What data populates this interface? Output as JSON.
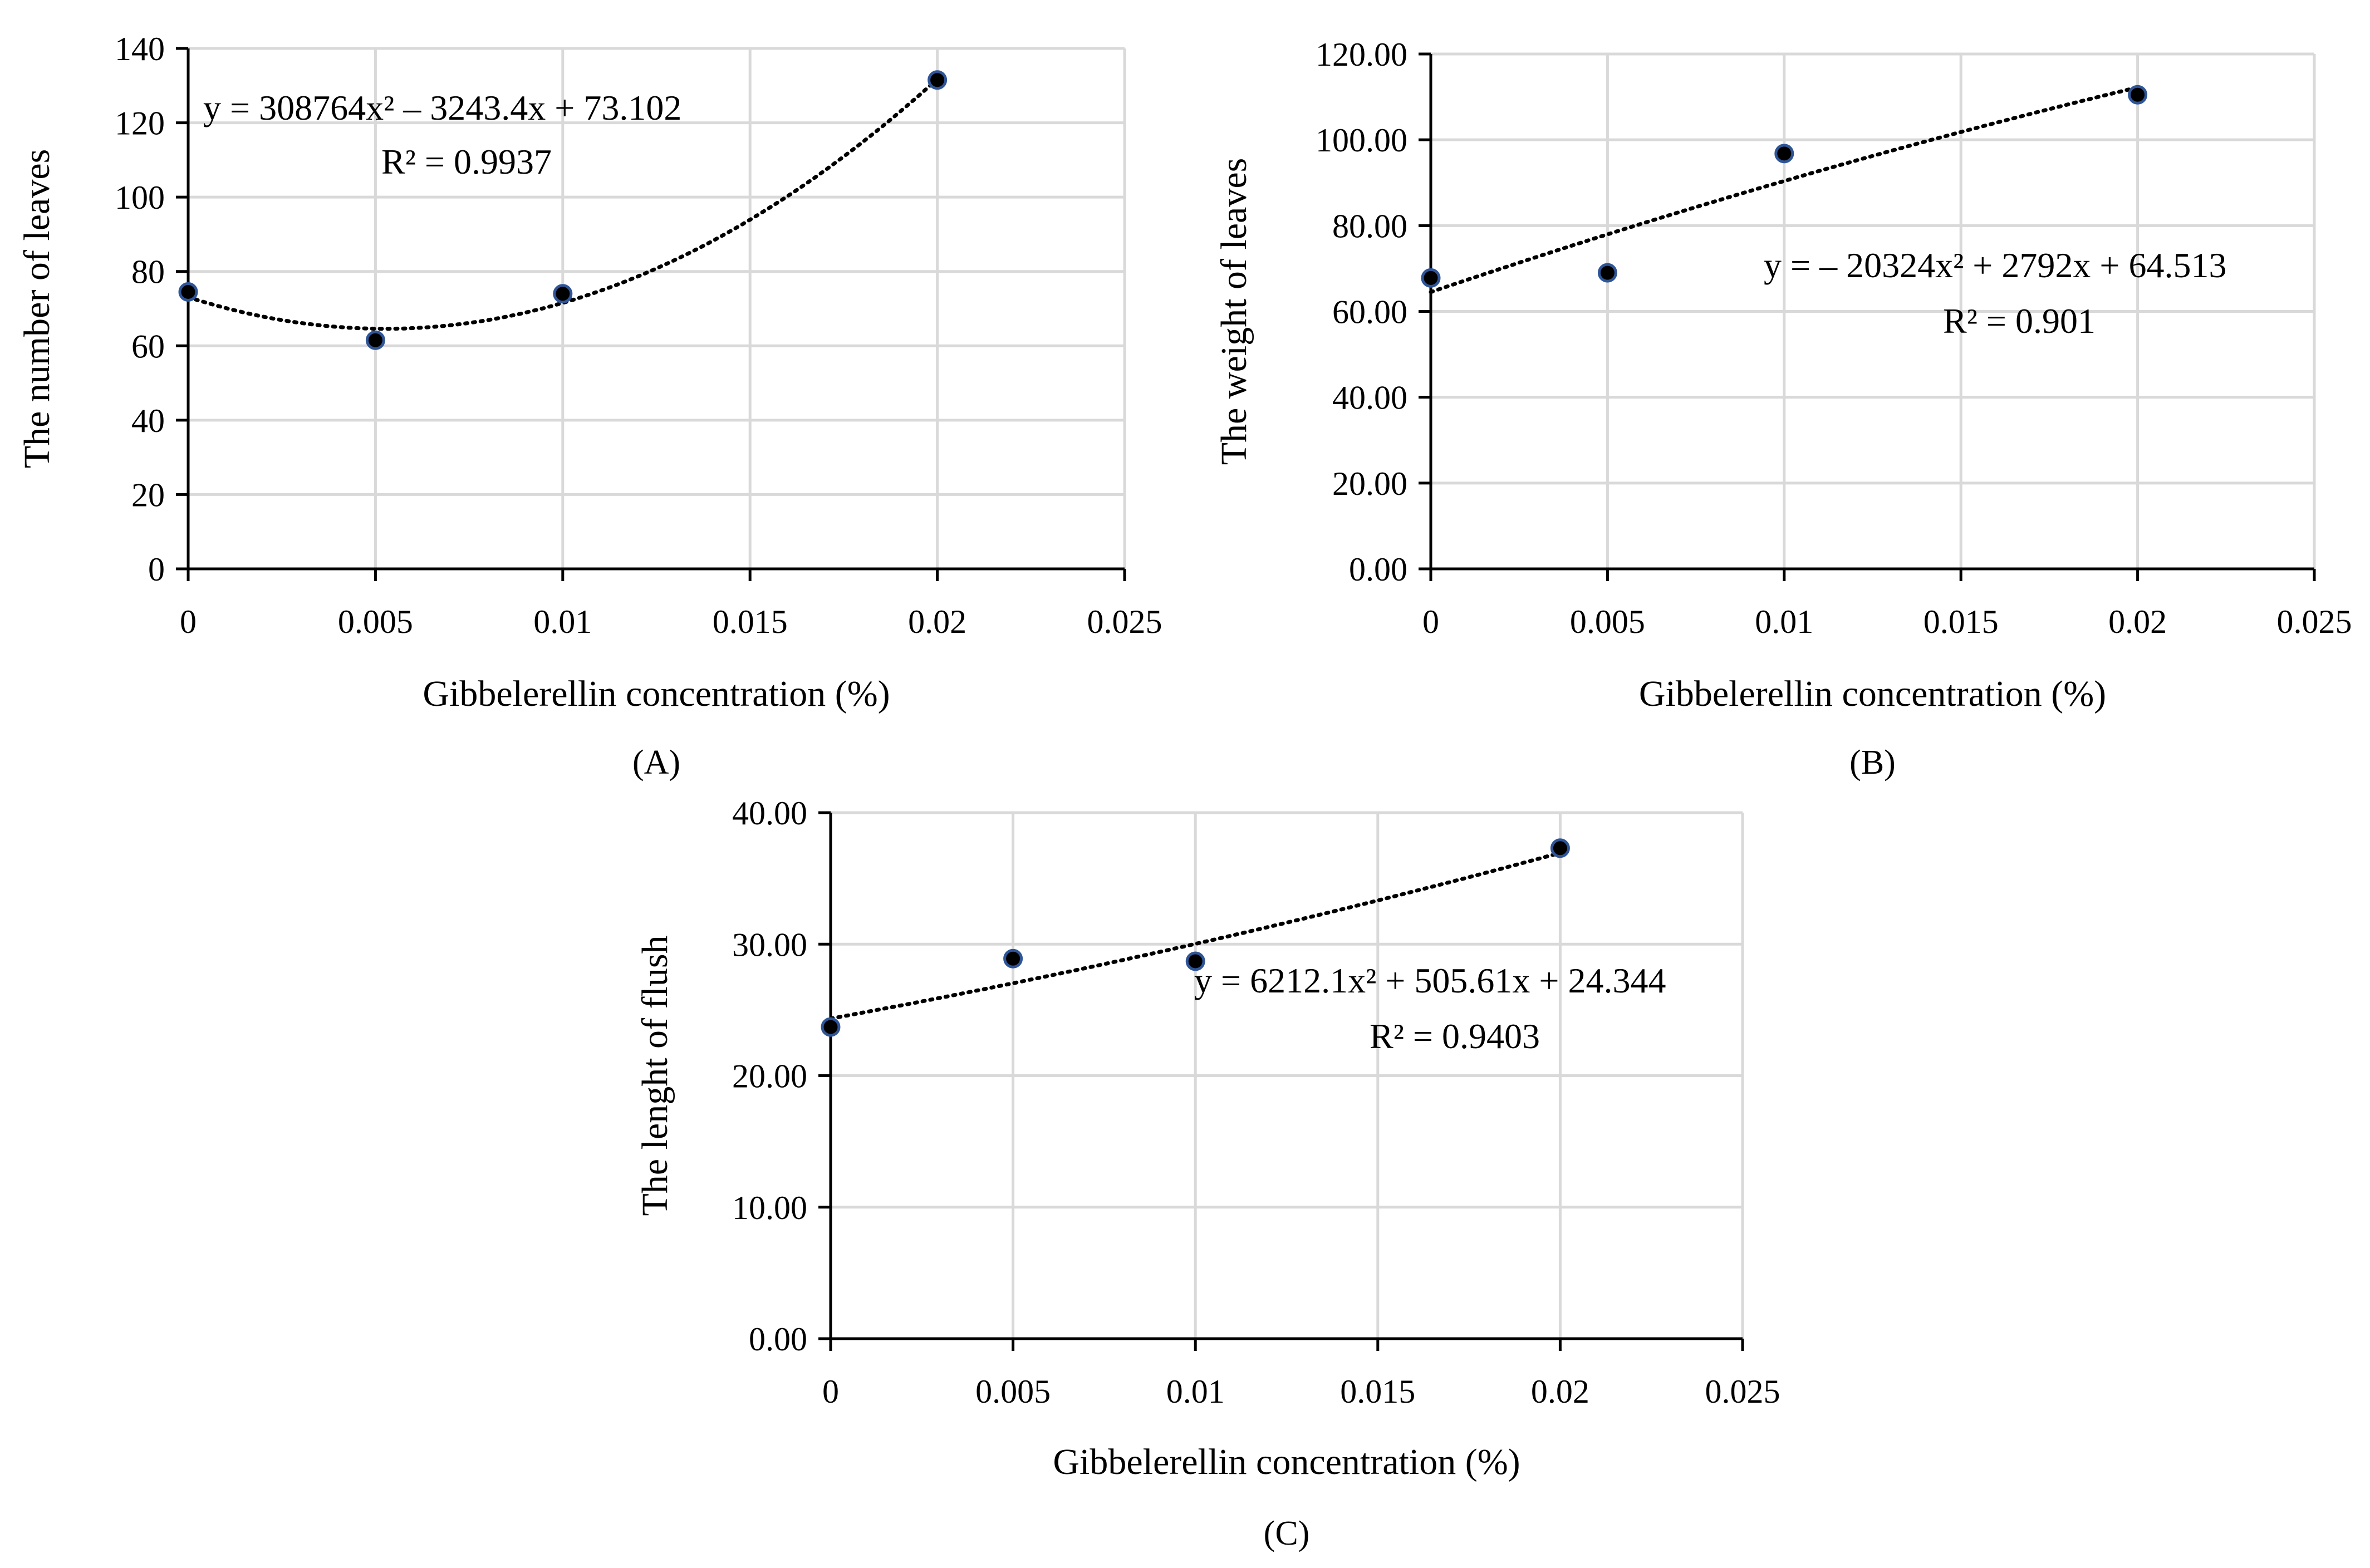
{
  "chart_data": [
    {
      "id": "A",
      "type": "scatter",
      "panel_label": "(A)",
      "xlabel": "Gibbelerellin concentration (%)",
      "ylabel": "The number of leaves",
      "xlim": [
        0,
        0.025
      ],
      "ylim": [
        0,
        140
      ],
      "xticks": [
        "0",
        "0.005",
        "0.01",
        "0.015",
        "0.02",
        "0.025"
      ],
      "xtick_values": [
        0,
        0.005,
        0.01,
        0.015,
        0.02,
        0.025
      ],
      "yticks": [
        "0",
        "20",
        "40",
        "60",
        "80",
        "100",
        "120",
        "140"
      ],
      "ytick_values": [
        0,
        20,
        40,
        60,
        80,
        100,
        120,
        140
      ],
      "x": [
        0,
        0.005,
        0.01,
        0.02
      ],
      "y": [
        74.5,
        61.5,
        74,
        131.5
      ],
      "trendline": {
        "type": "poly2",
        "a": 308764,
        "b": -3243.4,
        "c": 73.102
      },
      "equation": "y = 308764x² – 3243.4x + 73.102",
      "r2": "R² = 0.9937"
    },
    {
      "id": "B",
      "type": "scatter",
      "panel_label": "(B)",
      "xlabel": "Gibbelerellin concentration (%)",
      "ylabel": "The weight of leaves",
      "xlim": [
        0,
        0.025
      ],
      "ylim": [
        0,
        120
      ],
      "xticks": [
        "0",
        "0.005",
        "0.01",
        "0.015",
        "0.02",
        "0.025"
      ],
      "xtick_values": [
        0,
        0.005,
        0.01,
        0.015,
        0.02,
        0.025
      ],
      "yticks": [
        "0.00",
        "20.00",
        "40.00",
        "60.00",
        "80.00",
        "100.00",
        "120.00"
      ],
      "ytick_values": [
        0,
        20,
        40,
        60,
        80,
        100,
        120
      ],
      "x": [
        0,
        0.005,
        0.01,
        0.02
      ],
      "y": [
        67.8,
        69,
        96.8,
        110.5
      ],
      "trendline": {
        "type": "poly2",
        "a": -20324,
        "b": 2792,
        "c": 64.513
      },
      "equation": "y = – 20324x² + 2792x + 64.513",
      "r2": "R² = 0.901"
    },
    {
      "id": "C",
      "type": "scatter",
      "panel_label": "(C)",
      "xlabel": "Gibbelerellin concentration (%)",
      "ylabel": "The lenght of flush",
      "xlim": [
        0,
        0.025
      ],
      "ylim": [
        0,
        40
      ],
      "xticks": [
        "0",
        "0.005",
        "0.01",
        "0.015",
        "0.02",
        "0.025"
      ],
      "xtick_values": [
        0,
        0.005,
        0.01,
        0.015,
        0.02,
        0.025
      ],
      "yticks": [
        "0.00",
        "10.00",
        "20.00",
        "30.00",
        "40.00"
      ],
      "ytick_values": [
        0,
        10,
        20,
        30,
        40
      ],
      "x": [
        0,
        0.005,
        0.01,
        0.02
      ],
      "y": [
        23.7,
        28.9,
        28.7,
        37.3
      ],
      "trendline": {
        "type": "poly2",
        "a": 6212.1,
        "b": 505.61,
        "c": 24.344
      },
      "equation": "y = 6212.1x² + 505.61x + 24.344",
      "r2": "R² = 0.9403"
    }
  ]
}
